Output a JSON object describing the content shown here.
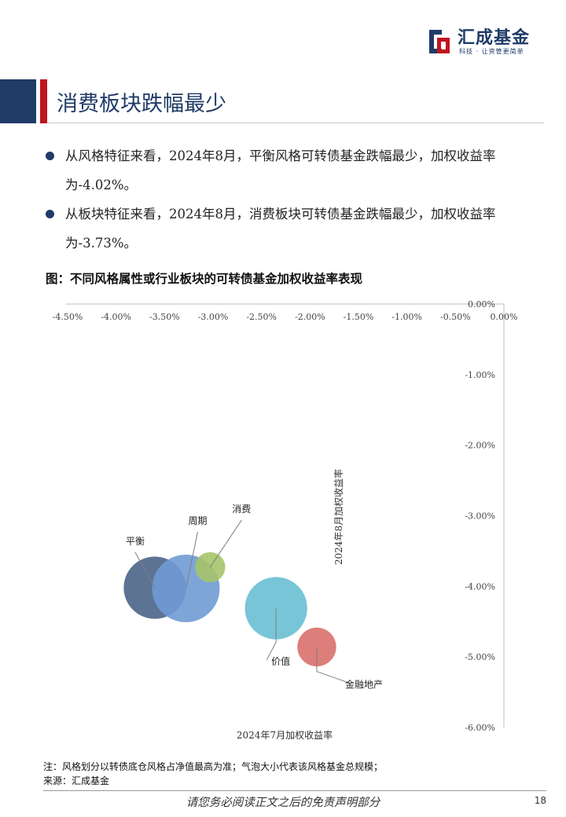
{
  "header": {
    "logo_name": "汇成基金",
    "logo_slogan": "科技 · 让资管更简单",
    "brand_colors": {
      "navy": "#1f3b66",
      "red": "#c0151f"
    },
    "logo_icon": "hcfund-logo-icon"
  },
  "section": {
    "title": "消费板块跌幅最少"
  },
  "bullets": [
    {
      "text": "从风格特征来看，2024年8月，平衡风格可转债基金跌幅最少，加权收益率为-4.02%。"
    },
    {
      "text": "从板块特征来看，2024年8月，消费板块可转债基金跌幅最少，加权收益率为-3.73%。"
    }
  ],
  "figure": {
    "title": "图：不同风格属性或行业板块的可转债基金加权收益率表现"
  },
  "chart_data": {
    "type": "scatter",
    "subtype": "bubble",
    "xlabel": "2024年7月加权收益率",
    "ylabel": "2024年8月加权收益率",
    "xlim": [
      -4.5,
      0
    ],
    "ylim": [
      -6,
      0
    ],
    "x_ticks": [
      "-4.50%",
      "-4.00%",
      "-3.50%",
      "-3.00%",
      "-2.50%",
      "-2.00%",
      "-1.50%",
      "-1.00%",
      "-0.50%",
      "0.00%"
    ],
    "y_ticks": [
      "0.00%",
      "-1.00%",
      "-2.00%",
      "-3.00%",
      "-4.00%",
      "-5.00%",
      "-6.00%"
    ],
    "x_axis_position": "top",
    "y_axis_position": "right",
    "grid": false,
    "legend": "none",
    "points": [
      {
        "name": "平衡",
        "x": -3.6,
        "y": -4.02,
        "size": 0.85,
        "color": "#4a6488"
      },
      {
        "name": "周期",
        "x": -3.28,
        "y": -4.03,
        "size": 1.0,
        "color": "#6f9bd4"
      },
      {
        "name": "消费",
        "x": -3.03,
        "y": -3.73,
        "size": 0.2,
        "color": "#a6c46a"
      },
      {
        "name": "价值",
        "x": -2.35,
        "y": -4.31,
        "size": 0.85,
        "color": "#69bfd4"
      },
      {
        "name": "金融地产",
        "x": -1.93,
        "y": -4.86,
        "size": 0.33,
        "color": "#d9706b"
      }
    ]
  },
  "notes": {
    "note": "注：风格划分以转债底仓风格占净值最高为准；气泡大小代表该风格基金总规模；",
    "source": "来源：汇成基金"
  },
  "footer": {
    "disclaimer": "请您务必阅读正文之后的免责声明部分",
    "page_number": "18"
  }
}
